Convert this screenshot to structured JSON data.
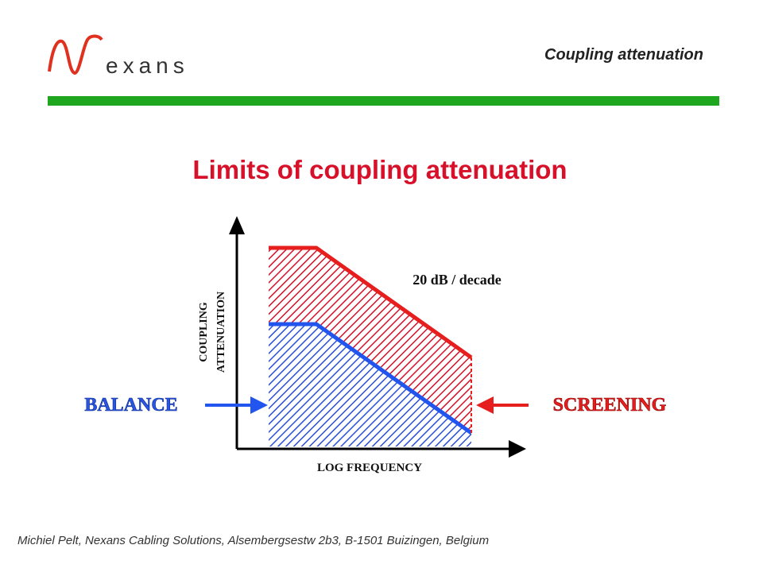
{
  "header": {
    "logo": "exans",
    "title": "Coupling attenuation"
  },
  "slide_title": "Limits of coupling attenuation",
  "diagram": {
    "slope_label": "20 dB / decade",
    "y_axis_label": [
      "COUPLING",
      "ATTENUATION"
    ],
    "x_axis_label": "LOG FREQUENCY",
    "left_label": "BALANCE",
    "right_label": "SCREENING"
  },
  "footer": "Michiel Pelt, Nexans Cabling Solutions, Alsembergsestw 2b3, B-1501 Buizingen, Belgium"
}
